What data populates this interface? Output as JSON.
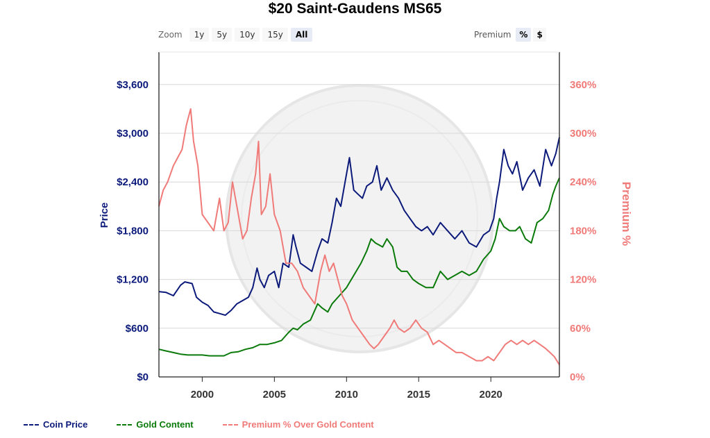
{
  "title": "$20 Saint-Gaudens MS65",
  "zoom": {
    "label": "Zoom",
    "options": [
      "1y",
      "5y",
      "10y",
      "15y",
      "All"
    ],
    "active": "All"
  },
  "premium_toggle": {
    "label": "Premium",
    "options": [
      "%",
      "$"
    ],
    "active": "%"
  },
  "colors": {
    "coin": "#0b1a7a",
    "gold": "#0a7a0a",
    "premium": "#f07a78"
  },
  "chart_data": {
    "type": "line",
    "title": "$20 Saint-Gaudens MS65",
    "xlabel": "",
    "ylabel": "Price",
    "ylabel_right": "Premium %",
    "xlim": [
      1997.0,
      2024.75
    ],
    "ylim": [
      0,
      4000
    ],
    "ylim_right": [
      0,
      400
    ],
    "x_ticks": [
      2000,
      2005,
      2010,
      2015,
      2020
    ],
    "y_ticks": [
      0,
      600,
      1200,
      1800,
      2400,
      3000,
      3600
    ],
    "y_tick_labels": [
      "$0",
      "$600",
      "$1,200",
      "$1,800",
      "$2,400",
      "$3,000",
      "$3,600"
    ],
    "y_right_ticks": [
      0,
      60,
      120,
      180,
      240,
      300,
      360
    ],
    "y_right_tick_labels": [
      "0%",
      "60%",
      "120%",
      "180%",
      "240%",
      "300%",
      "360%"
    ],
    "grid": true,
    "legend_position": "bottom-left",
    "series": [
      {
        "name": "Coin Price",
        "axis": "left",
        "x": [
          1997.0,
          1997.5,
          1998.0,
          1998.5,
          1998.8,
          1999.3,
          1999.6,
          2000.0,
          2000.4,
          2000.8,
          2001.2,
          2001.6,
          2002.0,
          2002.4,
          2002.8,
          2003.2,
          2003.5,
          2003.8,
          2004.0,
          2004.3,
          2004.6,
          2005.0,
          2005.3,
          2005.6,
          2006.0,
          2006.3,
          2006.5,
          2006.8,
          2007.2,
          2007.6,
          2008.0,
          2008.3,
          2008.7,
          2009.0,
          2009.3,
          2009.6,
          2009.9,
          2010.2,
          2010.5,
          2010.8,
          2011.1,
          2011.4,
          2011.8,
          2012.1,
          2012.4,
          2012.8,
          2013.2,
          2013.6,
          2014.0,
          2014.4,
          2014.8,
          2015.2,
          2015.6,
          2016.0,
          2016.5,
          2017.0,
          2017.5,
          2018.0,
          2018.5,
          2019.0,
          2019.5,
          2019.9,
          2020.2,
          2020.4,
          2020.6,
          2020.9,
          2021.2,
          2021.5,
          2021.8,
          2022.2,
          2022.6,
          2023.0,
          2023.4,
          2023.8,
          2024.2,
          2024.5,
          2024.75
        ],
        "y": [
          1050,
          1040,
          1000,
          1130,
          1170,
          1150,
          980,
          920,
          880,
          800,
          780,
          760,
          820,
          900,
          940,
          980,
          1100,
          1340,
          1200,
          1100,
          1250,
          1300,
          1100,
          1400,
          1350,
          1750,
          1600,
          1400,
          1350,
          1300,
          1550,
          1700,
          1650,
          1900,
          2200,
          2100,
          2400,
          2700,
          2300,
          2250,
          2200,
          2350,
          2400,
          2600,
          2300,
          2450,
          2300,
          2200,
          2050,
          1950,
          1850,
          1800,
          1850,
          1750,
          1900,
          1800,
          1700,
          1800,
          1650,
          1600,
          1750,
          1800,
          1950,
          2200,
          2400,
          2800,
          2600,
          2500,
          2650,
          2300,
          2450,
          2550,
          2350,
          2800,
          2600,
          2750,
          2950
        ]
      },
      {
        "name": "Gold Content",
        "axis": "left",
        "x": [
          1997.0,
          1997.5,
          1998.0,
          1998.5,
          1999.0,
          1999.5,
          2000.0,
          2000.5,
          2001.0,
          2001.5,
          2002.0,
          2002.5,
          2003.0,
          2003.5,
          2004.0,
          2004.5,
          2005.0,
          2005.5,
          2006.0,
          2006.3,
          2006.6,
          2007.0,
          2007.5,
          2008.0,
          2008.3,
          2008.7,
          2009.0,
          2009.5,
          2010.0,
          2010.5,
          2011.0,
          2011.4,
          2011.7,
          2012.0,
          2012.5,
          2012.8,
          2013.2,
          2013.5,
          2013.8,
          2014.2,
          2014.6,
          2015.0,
          2015.5,
          2016.0,
          2016.5,
          2017.0,
          2017.5,
          2018.0,
          2018.5,
          2019.0,
          2019.5,
          2020.0,
          2020.3,
          2020.6,
          2020.9,
          2021.3,
          2021.7,
          2022.0,
          2022.4,
          2022.8,
          2023.2,
          2023.6,
          2024.0,
          2024.3,
          2024.5,
          2024.75
        ],
        "y": [
          340,
          320,
          300,
          280,
          270,
          270,
          270,
          260,
          260,
          260,
          300,
          310,
          340,
          360,
          400,
          400,
          420,
          450,
          550,
          600,
          580,
          650,
          700,
          900,
          850,
          800,
          900,
          1000,
          1100,
          1250,
          1400,
          1550,
          1700,
          1650,
          1600,
          1700,
          1600,
          1350,
          1300,
          1300,
          1200,
          1150,
          1100,
          1100,
          1300,
          1200,
          1250,
          1300,
          1250,
          1300,
          1450,
          1550,
          1700,
          1950,
          1850,
          1800,
          1800,
          1850,
          1700,
          1650,
          1900,
          1950,
          2050,
          2250,
          2350,
          2450
        ]
      },
      {
        "name": "Premium % Over Gold Content",
        "axis": "right",
        "x": [
          1997.0,
          1997.3,
          1997.6,
          1998.0,
          1998.3,
          1998.6,
          1998.9,
          1999.2,
          1999.4,
          1999.7,
          2000.0,
          2000.4,
          2000.8,
          2001.2,
          2001.5,
          2001.8,
          2002.1,
          2002.5,
          2002.8,
          2003.1,
          2003.4,
          2003.7,
          2003.9,
          2004.1,
          2004.4,
          2004.7,
          2005.0,
          2005.4,
          2005.8,
          2006.2,
          2006.6,
          2007.0,
          2007.4,
          2007.8,
          2008.2,
          2008.5,
          2008.8,
          2009.1,
          2009.4,
          2009.7,
          2010.0,
          2010.4,
          2010.8,
          2011.2,
          2011.6,
          2011.9,
          2012.2,
          2012.6,
          2013.0,
          2013.3,
          2013.6,
          2014.0,
          2014.4,
          2014.8,
          2015.2,
          2015.6,
          2016.0,
          2016.4,
          2016.8,
          2017.2,
          2017.6,
          2018.0,
          2018.5,
          2019.0,
          2019.4,
          2019.8,
          2020.2,
          2020.6,
          2021.0,
          2021.4,
          2021.8,
          2022.2,
          2022.6,
          2023.0,
          2023.4,
          2023.8,
          2024.1,
          2024.4,
          2024.75
        ],
        "y": [
          210,
          230,
          240,
          260,
          270,
          280,
          310,
          330,
          290,
          260,
          200,
          190,
          180,
          220,
          180,
          190,
          240,
          200,
          170,
          180,
          220,
          250,
          290,
          200,
          210,
          250,
          200,
          180,
          140,
          140,
          130,
          110,
          100,
          90,
          130,
          150,
          130,
          140,
          120,
          100,
          90,
          70,
          60,
          50,
          40,
          35,
          40,
          50,
          60,
          70,
          60,
          55,
          60,
          70,
          60,
          55,
          40,
          45,
          40,
          35,
          30,
          30,
          25,
          20,
          20,
          25,
          20,
          30,
          40,
          45,
          40,
          45,
          40,
          45,
          40,
          35,
          30,
          25,
          15
        ]
      }
    ]
  }
}
